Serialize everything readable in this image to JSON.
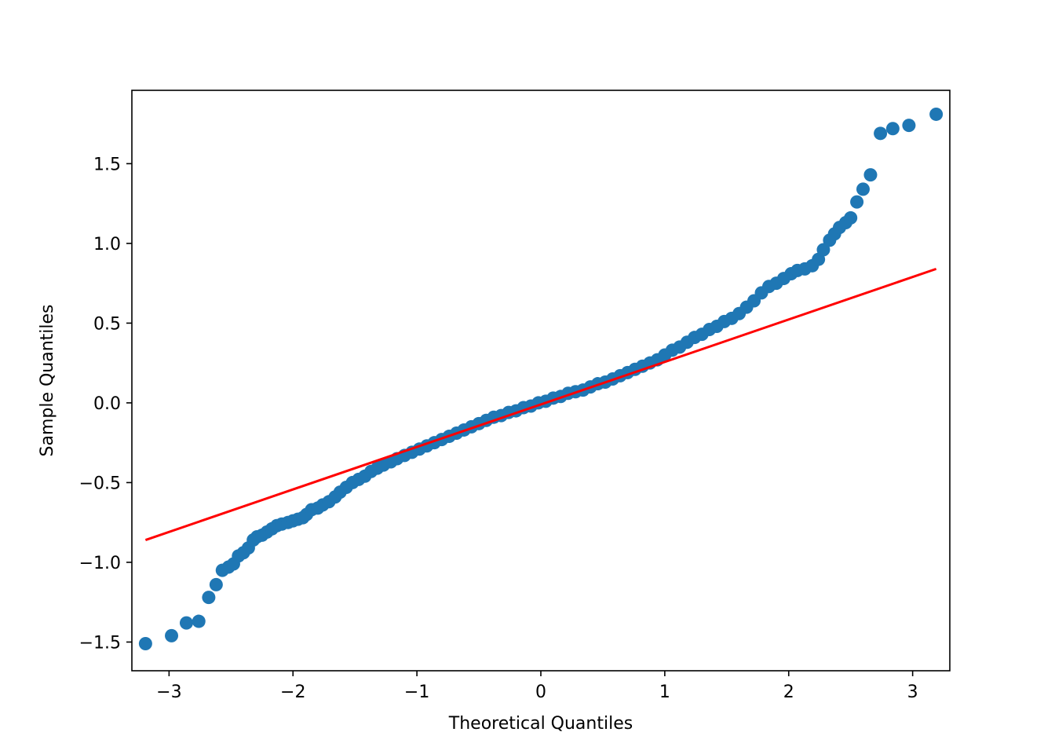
{
  "chart_data": {
    "type": "scatter",
    "xlabel": "Theoretical Quantiles",
    "ylabel": "Sample Quantiles",
    "xlim": [
      -3.3,
      3.3
    ],
    "ylim": [
      -1.68,
      1.96
    ],
    "x_ticks": [
      -3,
      -2,
      -1,
      0,
      1,
      2,
      3
    ],
    "x_tick_labels": [
      "−3",
      "−2",
      "−1",
      "0",
      "1",
      "2",
      "3"
    ],
    "y_ticks": [
      -1.5,
      -1.0,
      -0.5,
      0.0,
      0.5,
      1.0,
      1.5
    ],
    "y_tick_labels": [
      "−1.5",
      "−1.0",
      "−0.5",
      "0.0",
      "0.5",
      "1.0",
      "1.5"
    ],
    "grid": false,
    "series": [
      {
        "marker_color": "#1f77b4",
        "points": [
          [
            -3.19,
            -1.51
          ],
          [
            -2.98,
            -1.46
          ],
          [
            -2.86,
            -1.38
          ],
          [
            -2.76,
            -1.37
          ],
          [
            -2.68,
            -1.22
          ],
          [
            -2.62,
            -1.14
          ],
          [
            -2.57,
            -1.05
          ],
          [
            -2.52,
            -1.03
          ],
          [
            -2.48,
            -1.01
          ],
          [
            -2.44,
            -0.96
          ],
          [
            -2.4,
            -0.94
          ],
          [
            -2.36,
            -0.91
          ],
          [
            -2.32,
            -0.86
          ],
          [
            -2.29,
            -0.84
          ],
          [
            -2.25,
            -0.83
          ],
          [
            -2.21,
            -0.81
          ],
          [
            -2.17,
            -0.79
          ],
          [
            -2.13,
            -0.77
          ],
          [
            -2.09,
            -0.76
          ],
          [
            -2.04,
            -0.75
          ],
          [
            -2.0,
            -0.74
          ],
          [
            -1.96,
            -0.73
          ],
          [
            -1.92,
            -0.72
          ],
          [
            -1.89,
            -0.7
          ],
          [
            -1.85,
            -0.67
          ],
          [
            -1.8,
            -0.66
          ],
          [
            -1.76,
            -0.64
          ],
          [
            -1.71,
            -0.62
          ],
          [
            -1.66,
            -0.59
          ],
          [
            -1.62,
            -0.56
          ],
          [
            -1.57,
            -0.53
          ],
          [
            -1.52,
            -0.5
          ],
          [
            -1.47,
            -0.48
          ],
          [
            -1.42,
            -0.46
          ],
          [
            -1.37,
            -0.43
          ],
          [
            -1.32,
            -0.41
          ],
          [
            -1.27,
            -0.39
          ],
          [
            -1.21,
            -0.37
          ],
          [
            -1.16,
            -0.35
          ],
          [
            -1.1,
            -0.33
          ],
          [
            -1.04,
            -0.31
          ],
          [
            -0.98,
            -0.29
          ],
          [
            -0.92,
            -0.27
          ],
          [
            -0.86,
            -0.25
          ],
          [
            -0.8,
            -0.23
          ],
          [
            -0.74,
            -0.21
          ],
          [
            -0.68,
            -0.19
          ],
          [
            -0.62,
            -0.17
          ],
          [
            -0.56,
            -0.15
          ],
          [
            -0.5,
            -0.13
          ],
          [
            -0.44,
            -0.11
          ],
          [
            -0.38,
            -0.09
          ],
          [
            -0.32,
            -0.08
          ],
          [
            -0.26,
            -0.06
          ],
          [
            -0.2,
            -0.05
          ],
          [
            -0.14,
            -0.03
          ],
          [
            -0.08,
            -0.02
          ],
          [
            -0.02,
            0.0
          ],
          [
            0.04,
            0.01
          ],
          [
            0.1,
            0.03
          ],
          [
            0.16,
            0.04
          ],
          [
            0.22,
            0.06
          ],
          [
            0.28,
            0.07
          ],
          [
            0.34,
            0.08
          ],
          [
            0.4,
            0.1
          ],
          [
            0.46,
            0.12
          ],
          [
            0.52,
            0.13
          ],
          [
            0.58,
            0.15
          ],
          [
            0.64,
            0.17
          ],
          [
            0.7,
            0.19
          ],
          [
            0.76,
            0.21
          ],
          [
            0.82,
            0.23
          ],
          [
            0.88,
            0.25
          ],
          [
            0.94,
            0.27
          ],
          [
            1.0,
            0.3
          ],
          [
            1.06,
            0.33
          ],
          [
            1.12,
            0.35
          ],
          [
            1.18,
            0.38
          ],
          [
            1.24,
            0.41
          ],
          [
            1.3,
            0.43
          ],
          [
            1.36,
            0.46
          ],
          [
            1.42,
            0.48
          ],
          [
            1.48,
            0.51
          ],
          [
            1.54,
            0.53
          ],
          [
            1.6,
            0.56
          ],
          [
            1.66,
            0.6
          ],
          [
            1.72,
            0.64
          ],
          [
            1.78,
            0.69
          ],
          [
            1.84,
            0.73
          ],
          [
            1.9,
            0.75
          ],
          [
            1.96,
            0.78
          ],
          [
            2.02,
            0.81
          ],
          [
            2.07,
            0.83
          ],
          [
            2.13,
            0.84
          ],
          [
            2.19,
            0.86
          ],
          [
            2.24,
            0.9
          ],
          [
            2.28,
            0.96
          ],
          [
            2.33,
            1.02
          ],
          [
            2.37,
            1.06
          ],
          [
            2.41,
            1.1
          ],
          [
            2.46,
            1.13
          ],
          [
            2.5,
            1.16
          ],
          [
            2.55,
            1.26
          ],
          [
            2.6,
            1.34
          ],
          [
            2.66,
            1.43
          ],
          [
            2.74,
            1.69
          ],
          [
            2.84,
            1.72
          ],
          [
            2.97,
            1.74
          ],
          [
            3.19,
            1.81
          ]
        ]
      },
      {
        "line_color": "#ff0000",
        "line": [
          [
            -3.19,
            -0.86
          ],
          [
            3.19,
            0.84
          ]
        ]
      }
    ]
  }
}
